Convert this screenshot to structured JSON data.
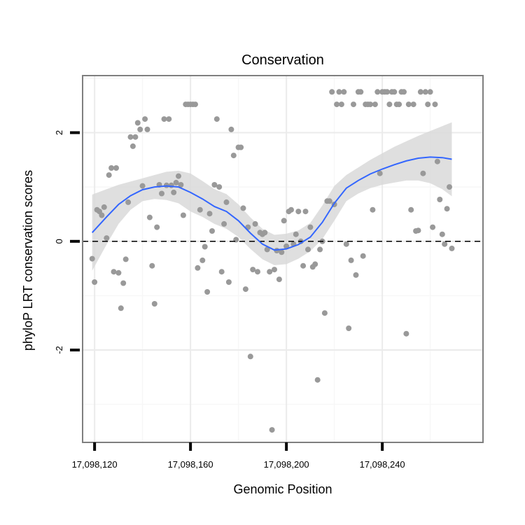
{
  "chart_data": {
    "type": "scatter",
    "title": "Conservation",
    "xlabel": "Genomic Position",
    "ylabel": "phyloP LRT conservation scores",
    "xlim": [
      17098115,
      17098282
    ],
    "ylim": [
      -3.7,
      3.05
    ],
    "x_ticks": [
      17098120,
      17098160,
      17098200,
      17098240
    ],
    "x_tick_labels": [
      "17,098,120",
      "17,098,160",
      "17,098,200",
      "17,098,240"
    ],
    "y_ticks": [
      -2,
      0,
      2
    ],
    "y_tick_labels": [
      "-2",
      "0",
      "2"
    ],
    "reference_line": {
      "y": 0,
      "style": "dashed"
    },
    "colors": {
      "points": "#999999",
      "smooth_line": "#3366ff",
      "confidence_band": "#d9d9d9",
      "panel_border": "#7f7f7f",
      "grid_major": "#ebebeb",
      "grid_minor": "#f7f7f7",
      "reference_line": "#000000"
    },
    "series": [
      {
        "name": "phyloP scores",
        "points": [
          [
            17098119,
            -0.32
          ],
          [
            17098120,
            -0.75
          ],
          [
            17098121,
            0.58
          ],
          [
            17098122,
            0.55
          ],
          [
            17098123,
            0.48
          ],
          [
            17098124,
            0.63
          ],
          [
            17098125,
            0.06
          ],
          [
            17098126,
            1.22
          ],
          [
            17098127,
            1.35
          ],
          [
            17098128,
            -0.56
          ],
          [
            17098129,
            1.35
          ],
          [
            17098130,
            -0.58
          ],
          [
            17098131,
            -1.23
          ],
          [
            17098132,
            -0.77
          ],
          [
            17098133,
            -0.33
          ],
          [
            17098134,
            0.72
          ],
          [
            17098135,
            1.92
          ],
          [
            17098136,
            1.75
          ],
          [
            17098137,
            1.92
          ],
          [
            17098138,
            2.18
          ],
          [
            17098139,
            2.06
          ],
          [
            17098140,
            1.02
          ],
          [
            17098141,
            2.25
          ],
          [
            17098142,
            2.06
          ],
          [
            17098143,
            0.44
          ],
          [
            17098144,
            -0.45
          ],
          [
            17098145,
            -1.15
          ],
          [
            17098146,
            0.26
          ],
          [
            17098147,
            1.04
          ],
          [
            17098148,
            0.88
          ],
          [
            17098149,
            2.25
          ],
          [
            17098150,
            1.03
          ],
          [
            17098151,
            2.25
          ],
          [
            17098152,
            1.03
          ],
          [
            17098153,
            0.9
          ],
          [
            17098154,
            1.08
          ],
          [
            17098155,
            1.2
          ],
          [
            17098156,
            1.04
          ],
          [
            17098157,
            0.48
          ],
          [
            17098158,
            2.52
          ],
          [
            17098159,
            2.52
          ],
          [
            17098160,
            2.52
          ],
          [
            17098161,
            2.52
          ],
          [
            17098162,
            2.52
          ],
          [
            17098163,
            -0.49
          ],
          [
            17098164,
            0.58
          ],
          [
            17098165,
            -0.35
          ],
          [
            17098166,
            -0.1
          ],
          [
            17098167,
            -0.93
          ],
          [
            17098168,
            0.51
          ],
          [
            17098169,
            0.19
          ],
          [
            17098170,
            1.04
          ],
          [
            17098171,
            2.25
          ],
          [
            17098172,
            1.0
          ],
          [
            17098173,
            -0.56
          ],
          [
            17098174,
            0.32
          ],
          [
            17098175,
            0.72
          ],
          [
            17098176,
            -0.75
          ],
          [
            17098177,
            2.06
          ],
          [
            17098178,
            1.58
          ],
          [
            17098179,
            0.03
          ],
          [
            17098180,
            1.73
          ],
          [
            17098181,
            1.73
          ],
          [
            17098182,
            0.61
          ],
          [
            17098183,
            -0.88
          ],
          [
            17098184,
            0.26
          ],
          [
            17098185,
            -2.12
          ],
          [
            17098186,
            -0.52
          ],
          [
            17098187,
            0.32
          ],
          [
            17098188,
            -0.56
          ],
          [
            17098189,
            0.16
          ],
          [
            17098190,
            0.13
          ],
          [
            17098191,
            0.16
          ],
          [
            17098192,
            -0.15
          ],
          [
            17098193,
            -0.56
          ],
          [
            17098194,
            -3.47
          ],
          [
            17098195,
            -0.52
          ],
          [
            17098196,
            -0.17
          ],
          [
            17098197,
            -0.7
          ],
          [
            17098198,
            -0.2
          ],
          [
            17098199,
            0.38
          ],
          [
            17098200,
            -0.09
          ],
          [
            17098201,
            0.55
          ],
          [
            17098202,
            0.58
          ],
          [
            17098203,
            -0.05
          ],
          [
            17098204,
            0.13
          ],
          [
            17098205,
            0.55
          ],
          [
            17098206,
            0.0
          ],
          [
            17098207,
            -0.45
          ],
          [
            17098208,
            0.55
          ],
          [
            17098209,
            -0.15
          ],
          [
            17098210,
            0.26
          ],
          [
            17098211,
            -0.47
          ],
          [
            17098212,
            -0.42
          ],
          [
            17098213,
            -2.55
          ],
          [
            17098214,
            -0.15
          ],
          [
            17098215,
            0.0
          ],
          [
            17098216,
            -1.32
          ],
          [
            17098217,
            0.74
          ],
          [
            17098218,
            0.74
          ],
          [
            17098219,
            2.75
          ],
          [
            17098220,
            0.68
          ],
          [
            17098221,
            2.52
          ],
          [
            17098222,
            2.75
          ],
          [
            17098223,
            2.52
          ],
          [
            17098224,
            2.75
          ],
          [
            17098225,
            -0.05
          ],
          [
            17098226,
            -1.6
          ],
          [
            17098227,
            -0.35
          ],
          [
            17098228,
            2.52
          ],
          [
            17098229,
            -0.62
          ],
          [
            17098230,
            2.75
          ],
          [
            17098231,
            2.75
          ],
          [
            17098232,
            -0.27
          ],
          [
            17098233,
            2.52
          ],
          [
            17098234,
            2.52
          ],
          [
            17098235,
            2.52
          ],
          [
            17098236,
            0.58
          ],
          [
            17098237,
            2.52
          ],
          [
            17098238,
            2.75
          ],
          [
            17098239,
            1.25
          ],
          [
            17098240,
            2.75
          ],
          [
            17098241,
            2.75
          ],
          [
            17098242,
            2.75
          ],
          [
            17098243,
            2.52
          ],
          [
            17098244,
            2.75
          ],
          [
            17098245,
            2.75
          ],
          [
            17098246,
            2.52
          ],
          [
            17098247,
            2.52
          ],
          [
            17098248,
            2.75
          ],
          [
            17098249,
            2.75
          ],
          [
            17098250,
            -1.7
          ],
          [
            17098251,
            2.52
          ],
          [
            17098252,
            0.58
          ],
          [
            17098253,
            2.52
          ],
          [
            17098254,
            0.19
          ],
          [
            17098255,
            0.2
          ],
          [
            17098256,
            2.75
          ],
          [
            17098257,
            1.25
          ],
          [
            17098258,
            2.75
          ],
          [
            17098259,
            2.52
          ],
          [
            17098260,
            2.75
          ],
          [
            17098261,
            0.26
          ],
          [
            17098262,
            2.52
          ],
          [
            17098263,
            1.47
          ],
          [
            17098264,
            0.77
          ],
          [
            17098265,
            0.13
          ],
          [
            17098266,
            -0.05
          ],
          [
            17098267,
            0.6
          ],
          [
            17098268,
            1.0
          ],
          [
            17098269,
            -0.13
          ]
        ]
      },
      {
        "name": "loess smooth",
        "line": [
          [
            17098119,
            0.16
          ],
          [
            17098125,
            0.45
          ],
          [
            17098130,
            0.68
          ],
          [
            17098135,
            0.84
          ],
          [
            17098140,
            0.95
          ],
          [
            17098145,
            1.0
          ],
          [
            17098150,
            1.02
          ],
          [
            17098155,
            1.0
          ],
          [
            17098160,
            0.9
          ],
          [
            17098165,
            0.78
          ],
          [
            17098170,
            0.64
          ],
          [
            17098175,
            0.55
          ],
          [
            17098180,
            0.38
          ],
          [
            17098185,
            0.15
          ],
          [
            17098190,
            -0.05
          ],
          [
            17098195,
            -0.16
          ],
          [
            17098200,
            -0.14
          ],
          [
            17098205,
            -0.06
          ],
          [
            17098210,
            0.08
          ],
          [
            17098215,
            0.35
          ],
          [
            17098220,
            0.7
          ],
          [
            17098225,
            0.98
          ],
          [
            17098230,
            1.12
          ],
          [
            17098235,
            1.24
          ],
          [
            17098240,
            1.33
          ],
          [
            17098245,
            1.41
          ],
          [
            17098250,
            1.48
          ],
          [
            17098255,
            1.53
          ],
          [
            17098260,
            1.55
          ],
          [
            17098265,
            1.54
          ],
          [
            17098269,
            1.51
          ]
        ],
        "upper": [
          [
            17098119,
            0.86
          ],
          [
            17098125,
            0.96
          ],
          [
            17098130,
            1.04
          ],
          [
            17098135,
            1.1
          ],
          [
            17098140,
            1.16
          ],
          [
            17098145,
            1.22
          ],
          [
            17098150,
            1.28
          ],
          [
            17098155,
            1.3
          ],
          [
            17098160,
            1.25
          ],
          [
            17098165,
            1.11
          ],
          [
            17098170,
            0.96
          ],
          [
            17098175,
            0.87
          ],
          [
            17098180,
            0.68
          ],
          [
            17098185,
            0.44
          ],
          [
            17098190,
            0.23
          ],
          [
            17098195,
            0.12
          ],
          [
            17098200,
            0.14
          ],
          [
            17098205,
            0.2
          ],
          [
            17098210,
            0.34
          ],
          [
            17098215,
            0.66
          ],
          [
            17098220,
            1.02
          ],
          [
            17098225,
            1.22
          ],
          [
            17098230,
            1.36
          ],
          [
            17098235,
            1.5
          ],
          [
            17098240,
            1.62
          ],
          [
            17098245,
            1.74
          ],
          [
            17098250,
            1.84
          ],
          [
            17098255,
            1.94
          ],
          [
            17098260,
            2.03
          ],
          [
            17098265,
            2.12
          ],
          [
            17098269,
            2.19
          ]
        ],
        "lower": [
          [
            17098119,
            -0.54
          ],
          [
            17098125,
            -0.06
          ],
          [
            17098130,
            0.32
          ],
          [
            17098135,
            0.58
          ],
          [
            17098140,
            0.74
          ],
          [
            17098145,
            0.78
          ],
          [
            17098150,
            0.76
          ],
          [
            17098155,
            0.7
          ],
          [
            17098160,
            0.55
          ],
          [
            17098165,
            0.45
          ],
          [
            17098170,
            0.32
          ],
          [
            17098175,
            0.23
          ],
          [
            17098180,
            0.08
          ],
          [
            17098185,
            -0.14
          ],
          [
            17098190,
            -0.33
          ],
          [
            17098195,
            -0.44
          ],
          [
            17098200,
            -0.42
          ],
          [
            17098205,
            -0.32
          ],
          [
            17098210,
            -0.18
          ],
          [
            17098215,
            0.04
          ],
          [
            17098220,
            0.38
          ],
          [
            17098225,
            0.74
          ],
          [
            17098230,
            0.88
          ],
          [
            17098235,
            0.98
          ],
          [
            17098240,
            1.04
          ],
          [
            17098245,
            1.08
          ],
          [
            17098250,
            1.12
          ],
          [
            17098255,
            1.12
          ],
          [
            17098260,
            1.07
          ],
          [
            17098265,
            0.96
          ],
          [
            17098269,
            0.83
          ]
        ]
      }
    ]
  }
}
